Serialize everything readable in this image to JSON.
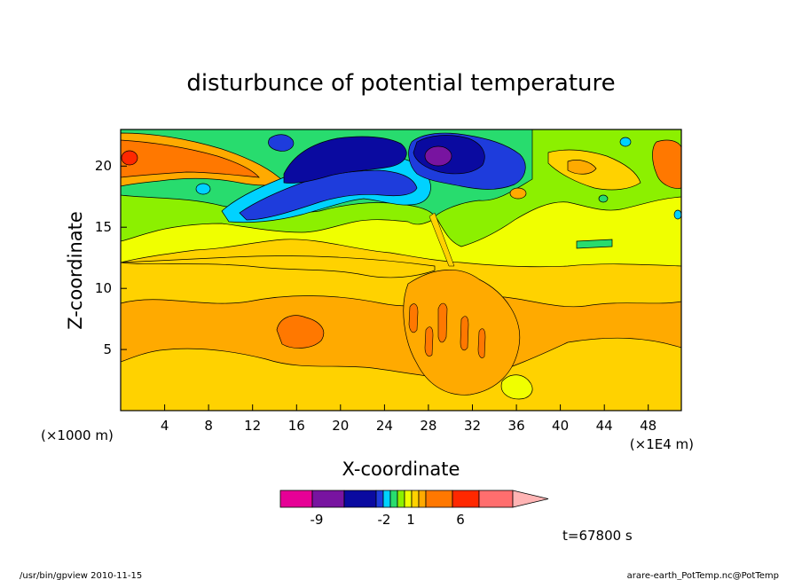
{
  "chart_data": {
    "type": "heatmap",
    "title": "disturbunce of potential temperature",
    "xlabel": "X-coordinate",
    "ylabel": "Z-coordinate",
    "x_unit": "(×1000 m)",
    "x_scale_note": "(×1E4 m)",
    "xlim": [
      0,
      51
    ],
    "ylim": [
      0,
      23
    ],
    "x_ticks": [
      "4",
      "8",
      "12",
      "16",
      "20",
      "24",
      "28",
      "32",
      "36",
      "40",
      "44",
      "48"
    ],
    "y_ticks": [
      "5",
      "10",
      "15",
      "20"
    ],
    "colorbar": {
      "colors": [
        "#e60096",
        "#7814a0",
        "#0a0aa0",
        "#1e3cdc",
        "#00d2ff",
        "#28dc6e",
        "#8cf000",
        "#f0ff00",
        "#ffd200",
        "#ffaa00",
        "#ff7800",
        "#ff2800",
        "#ff6e6e",
        "#ffb4b4"
      ],
      "tick_labels": [
        "-9",
        "-2",
        "1",
        "6"
      ]
    },
    "time_label": "t=67800 s"
  },
  "footer": {
    "left": "/usr/bin/gpview   2010-11-15",
    "right": "arare-earth_PotTemp.nc@PotTemp"
  }
}
